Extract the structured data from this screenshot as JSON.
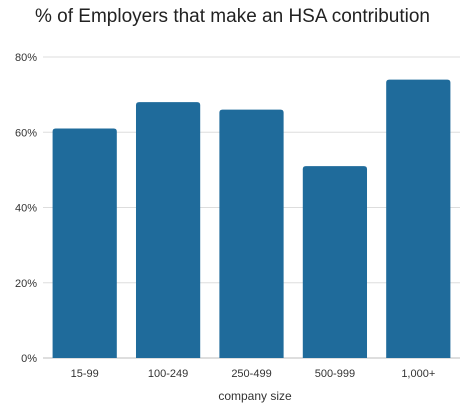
{
  "chart_data": {
    "type": "bar",
    "title": "% of Employers that make an HSA contribution",
    "xlabel": "company size",
    "ylabel": "",
    "categories": [
      "15-99",
      "100-249",
      "250-499",
      "500-999",
      "1,000+"
    ],
    "values": [
      61,
      68,
      66,
      51,
      74
    ],
    "ylim": [
      0,
      80
    ],
    "yticks": [
      0,
      20,
      40,
      60,
      80
    ],
    "ytick_format": "%",
    "grid": true,
    "bar_color": "#1f6b9b"
  }
}
